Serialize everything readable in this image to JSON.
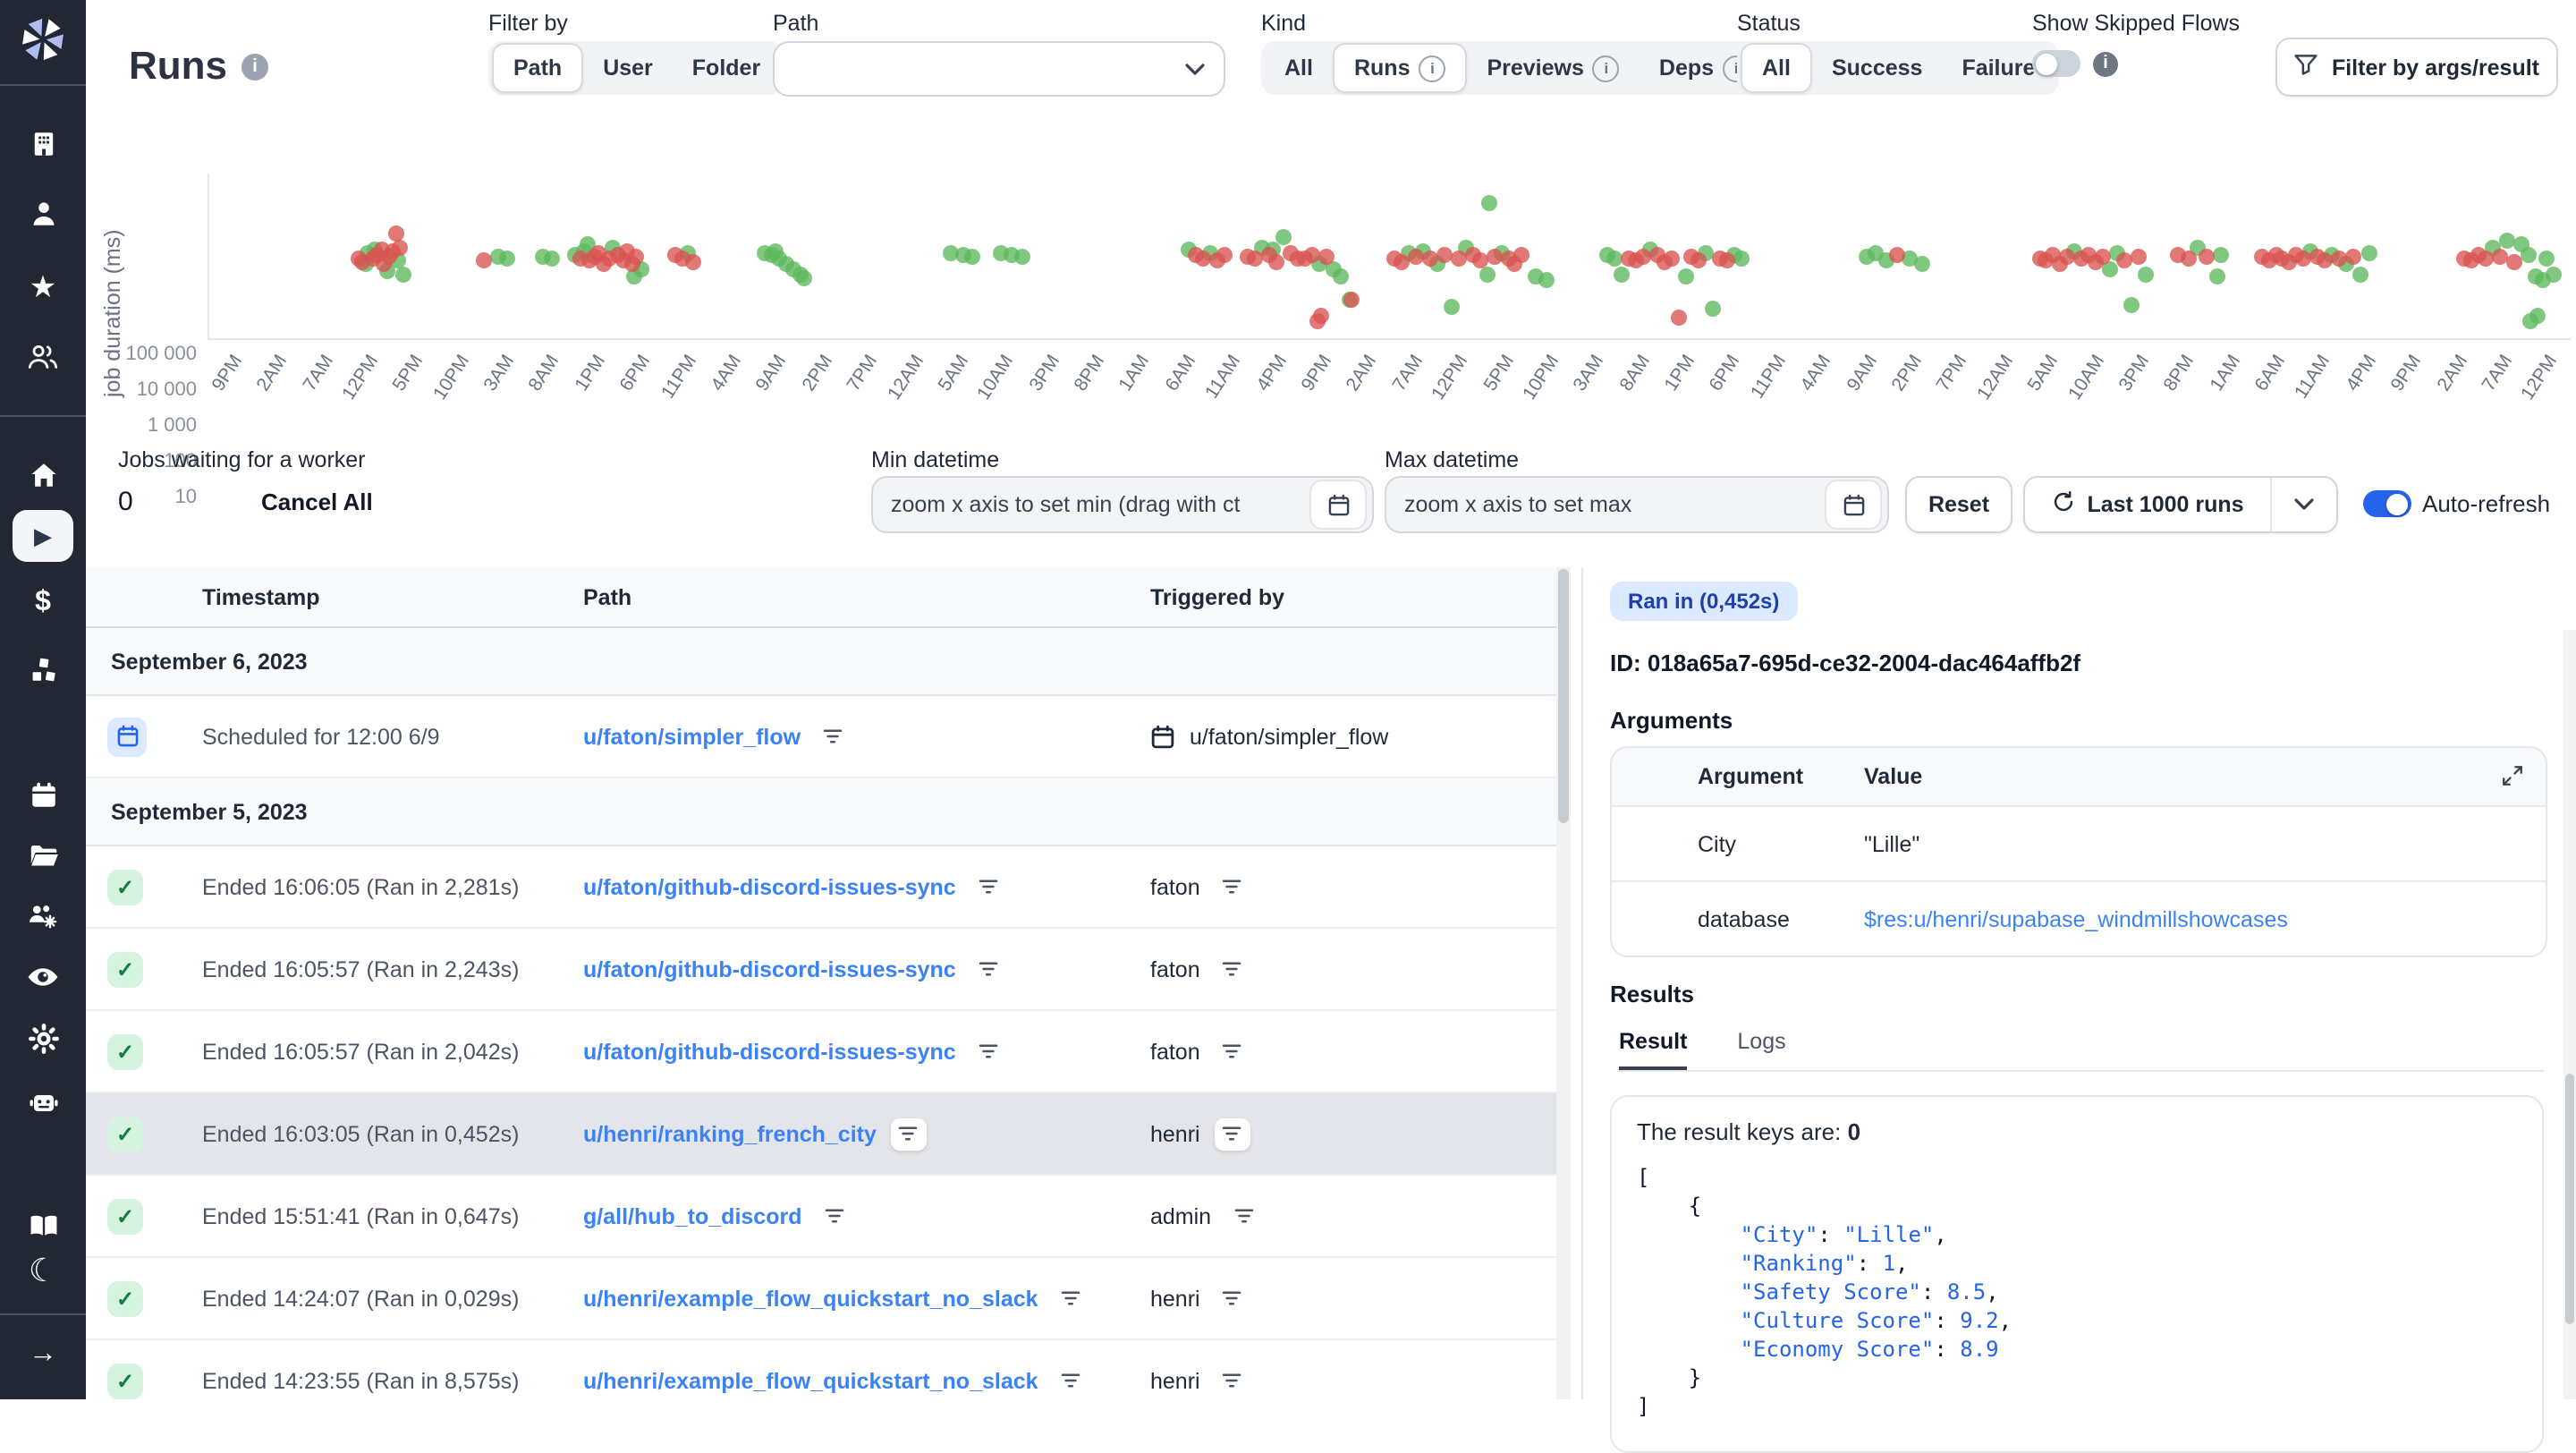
{
  "app": {
    "name": "Windmill"
  },
  "header": {
    "title": "Runs",
    "filter_by": {
      "label": "Filter by",
      "options": [
        "Path",
        "User",
        "Folder"
      ],
      "selected": "Path"
    },
    "path_filter": {
      "label": "Path",
      "value": ""
    },
    "kind": {
      "label": "Kind",
      "options": [
        "All",
        "Runs",
        "Previews",
        "Deps"
      ],
      "selected": "Runs",
      "options_with_info": [
        "Runs",
        "Previews",
        "Deps"
      ]
    },
    "status": {
      "label": "Status",
      "options": [
        "All",
        "Success",
        "Failure"
      ],
      "selected": "All"
    },
    "show_skipped": {
      "label": "Show Skipped Flows",
      "enabled": false
    },
    "filter_args_button": "Filter by args/result"
  },
  "chart_data": {
    "type": "scatter",
    "ylabel": "job duration (ms)",
    "y_scale": "log",
    "ylim": [
      10,
      100000
    ],
    "y_ticks": [
      "100 000",
      "10 000",
      "1 000",
      "100",
      "10"
    ],
    "x_ticks": [
      "9PM",
      "2AM",
      "7AM",
      "12PM",
      "5PM",
      "10PM",
      "3AM",
      "8AM",
      "1PM",
      "6PM",
      "11PM",
      "4AM",
      "9AM",
      "2PM",
      "7PM",
      "12AM",
      "5AM",
      "10AM",
      "3PM",
      "8PM",
      "1AM",
      "6AM",
      "11AM",
      "4PM",
      "9PM",
      "2AM",
      "7AM",
      "12PM",
      "5PM",
      "10PM",
      "3AM",
      "8AM",
      "1PM",
      "6PM",
      "11PM",
      "4AM",
      "9AM",
      "2PM",
      "7PM",
      "12AM",
      "5AM",
      "10AM",
      "3PM",
      "8PM",
      "1AM",
      "6AM",
      "11AM",
      "4PM",
      "9PM",
      "2AM",
      "7AM",
      "12PM"
    ],
    "legend_position": "none",
    "grid": false,
    "series": [
      {
        "name": "success",
        "color": "#5cb85c",
        "points": [
          [
            6.6,
            900
          ],
          [
            6.7,
            1900
          ],
          [
            7.0,
            2300
          ],
          [
            7.5,
            600
          ],
          [
            8.0,
            1200
          ],
          [
            8.2,
            480
          ],
          [
            12.2,
            1550
          ],
          [
            12.6,
            1350
          ],
          [
            14.1,
            1500
          ],
          [
            14.5,
            1300
          ],
          [
            15.5,
            1700
          ],
          [
            15.9,
            2200
          ],
          [
            16.0,
            3200
          ],
          [
            17.1,
            2600
          ],
          [
            18.0,
            420
          ],
          [
            18.3,
            700
          ],
          [
            20.3,
            1800
          ],
          [
            23.5,
            1900
          ],
          [
            23.8,
            1600
          ],
          [
            24.0,
            2100
          ],
          [
            24.1,
            1300
          ],
          [
            24.4,
            1000
          ],
          [
            24.7,
            700
          ],
          [
            25.0,
            480
          ],
          [
            25.2,
            380
          ],
          [
            31.4,
            1900
          ],
          [
            31.9,
            1700
          ],
          [
            32.3,
            1500
          ],
          [
            33.5,
            1900
          ],
          [
            34.0,
            1650
          ],
          [
            34.4,
            1500
          ],
          [
            41.5,
            2300
          ],
          [
            42.4,
            1900
          ],
          [
            44.6,
            2800
          ],
          [
            45.0,
            2400
          ],
          [
            45.5,
            5200
          ],
          [
            47.0,
            1000
          ],
          [
            47.6,
            650
          ],
          [
            47.9,
            430
          ],
          [
            48.3,
            100
          ],
          [
            50.8,
            1800
          ],
          [
            51.4,
            2200
          ],
          [
            52.0,
            900
          ],
          [
            52.6,
            60
          ],
          [
            53.2,
            2600
          ],
          [
            54.1,
            480
          ],
          [
            54.2,
            50000
          ],
          [
            54.7,
            1900
          ],
          [
            56.2,
            420
          ],
          [
            56.6,
            350
          ],
          [
            59.2,
            1600
          ],
          [
            59.5,
            1300
          ],
          [
            59.8,
            470
          ],
          [
            61.0,
            2500
          ],
          [
            62.5,
            420
          ],
          [
            63.4,
            1800
          ],
          [
            63.7,
            55
          ],
          [
            64.6,
            1600
          ],
          [
            64.9,
            1300
          ],
          [
            70.2,
            1500
          ],
          [
            70.6,
            1800
          ],
          [
            71.0,
            1200
          ],
          [
            72.0,
            1400
          ],
          [
            72.5,
            900
          ],
          [
            79.0,
            2200
          ],
          [
            80.5,
            700
          ],
          [
            80.8,
            1800
          ],
          [
            81.4,
            65
          ],
          [
            82.0,
            450
          ],
          [
            84.2,
            2600
          ],
          [
            85.0,
            400
          ],
          [
            85.2,
            1700
          ],
          [
            89.0,
            2000
          ],
          [
            89.9,
            1600
          ],
          [
            90.5,
            1000
          ],
          [
            91.1,
            450
          ],
          [
            91.5,
            1800
          ],
          [
            96.7,
            2600
          ],
          [
            97.3,
            4300
          ],
          [
            97.9,
            3400
          ],
          [
            98.2,
            1700
          ],
          [
            98.3,
            25
          ],
          [
            98.5,
            420
          ],
          [
            98.6,
            32
          ],
          [
            98.8,
            350
          ],
          [
            99.0,
            1300
          ],
          [
            99.3,
            500
          ]
        ]
      },
      {
        "name": "failure",
        "color": "#d9534f",
        "points": [
          [
            6.3,
            1400
          ],
          [
            6.5,
            1100
          ],
          [
            6.9,
            1300
          ],
          [
            7.1,
            1600
          ],
          [
            7.3,
            2400
          ],
          [
            7.4,
            1000
          ],
          [
            7.6,
            1500
          ],
          [
            7.8,
            2000
          ],
          [
            7.9,
            6800
          ],
          [
            8.1,
            2800
          ],
          [
            11.6,
            1250
          ],
          [
            15.7,
            1400
          ],
          [
            16.1,
            1200
          ],
          [
            16.3,
            1500
          ],
          [
            16.5,
            1800
          ],
          [
            16.7,
            1000
          ],
          [
            16.9,
            1400
          ],
          [
            17.3,
            1600
          ],
          [
            17.5,
            1200
          ],
          [
            17.7,
            2000
          ],
          [
            17.9,
            900
          ],
          [
            18.1,
            1500
          ],
          [
            19.7,
            1600
          ],
          [
            20.0,
            1400
          ],
          [
            20.5,
            1100
          ],
          [
            41.8,
            1600
          ],
          [
            42.1,
            1400
          ],
          [
            42.7,
            1200
          ],
          [
            43.0,
            1600
          ],
          [
            44.0,
            1500
          ],
          [
            44.3,
            1300
          ],
          [
            44.9,
            1600
          ],
          [
            45.2,
            1100
          ],
          [
            45.8,
            1800
          ],
          [
            46.1,
            1400
          ],
          [
            46.4,
            1300
          ],
          [
            46.7,
            1700
          ],
          [
            47.3,
            1500
          ],
          [
            46.9,
            25
          ],
          [
            47.1,
            35
          ],
          [
            48.4,
            90
          ],
          [
            50.2,
            1400
          ],
          [
            50.5,
            1100
          ],
          [
            51.1,
            1500
          ],
          [
            51.7,
            1300
          ],
          [
            52.3,
            1600
          ],
          [
            52.9,
            1400
          ],
          [
            53.5,
            1700
          ],
          [
            53.8,
            1200
          ],
          [
            54.4,
            1500
          ],
          [
            55.0,
            1300
          ],
          [
            55.3,
            1000
          ],
          [
            55.6,
            1600
          ],
          [
            60.1,
            1400
          ],
          [
            60.4,
            1200
          ],
          [
            60.7,
            1550
          ],
          [
            61.3,
            1700
          ],
          [
            61.6,
            1100
          ],
          [
            61.9,
            1350
          ],
          [
            62.2,
            30
          ],
          [
            62.8,
            1500
          ],
          [
            63.1,
            1250
          ],
          [
            64.0,
            1400
          ],
          [
            64.3,
            1150
          ],
          [
            71.5,
            1600
          ],
          [
            77.5,
            1400
          ],
          [
            77.8,
            1200
          ],
          [
            78.1,
            1700
          ],
          [
            78.4,
            1000
          ],
          [
            78.7,
            1500
          ],
          [
            79.3,
            1300
          ],
          [
            79.6,
            1600
          ],
          [
            79.9,
            1100
          ],
          [
            80.2,
            1450
          ],
          [
            81.1,
            1250
          ],
          [
            81.7,
            1550
          ],
          [
            83.4,
            1600
          ],
          [
            83.8,
            1300
          ],
          [
            84.6,
            1450
          ],
          [
            86.9,
            1500
          ],
          [
            87.2,
            1250
          ],
          [
            87.5,
            1650
          ],
          [
            87.8,
            1400
          ],
          [
            88.1,
            1100
          ],
          [
            88.4,
            1750
          ],
          [
            88.7,
            1300
          ],
          [
            89.3,
            1500
          ],
          [
            89.6,
            1200
          ],
          [
            90.2,
            1350
          ],
          [
            90.8,
            1500
          ],
          [
            95.5,
            1400
          ],
          [
            95.8,
            1200
          ],
          [
            96.1,
            1600
          ],
          [
            96.4,
            1300
          ],
          [
            97.0,
            1500
          ],
          [
            97.6,
            1100
          ]
        ]
      }
    ]
  },
  "controls": {
    "jobs_waiting_label": "Jobs waiting for a worker",
    "jobs_waiting_count": "0",
    "cancel_all": "Cancel All",
    "min_datetime": {
      "label": "Min datetime",
      "placeholder": "zoom x axis to set min (drag with ct"
    },
    "max_datetime": {
      "label": "Max datetime",
      "placeholder": "zoom x axis to set max"
    },
    "reset": "Reset",
    "last_runs": "Last 1000 runs",
    "auto_refresh": {
      "label": "Auto-refresh",
      "enabled": true
    }
  },
  "table": {
    "columns": [
      "Timestamp",
      "Path",
      "Triggered by"
    ],
    "sections": [
      {
        "date": "September 6, 2023",
        "rows": [
          {
            "icon": "calendar",
            "time": "Scheduled for 12:00 6/9",
            "path": "u/faton/simpler_flow",
            "by": "u/faton/simpler_flow",
            "by_icon": "calendar",
            "selected": false
          }
        ]
      },
      {
        "date": "September 5, 2023",
        "rows": [
          {
            "icon": "check",
            "time": "Ended 16:06:05 (Ran in 2,281s)",
            "path": "u/faton/github-discord-issues-sync",
            "by": "faton",
            "selected": false
          },
          {
            "icon": "check",
            "time": "Ended 16:05:57 (Ran in 2,243s)",
            "path": "u/faton/github-discord-issues-sync",
            "by": "faton",
            "selected": false
          },
          {
            "icon": "check",
            "time": "Ended 16:05:57 (Ran in 2,042s)",
            "path": "u/faton/github-discord-issues-sync",
            "by": "faton",
            "selected": false
          },
          {
            "icon": "check",
            "time": "Ended 16:03:05 (Ran in 0,452s)",
            "path": "u/henri/ranking_french_city",
            "by": "henri",
            "selected": true
          },
          {
            "icon": "check",
            "time": "Ended 15:51:41 (Ran in 0,647s)",
            "path": "g/all/hub_to_discord",
            "by": "admin",
            "selected": false
          },
          {
            "icon": "check",
            "time": "Ended 14:24:07 (Ran in 0,029s)",
            "path": "u/henri/example_flow_quickstart_no_slack",
            "by": "henri",
            "selected": false
          },
          {
            "icon": "check",
            "time": "Ended 14:23:55 (Ran in 8,575s)",
            "path": "u/henri/example_flow_quickstart_no_slack",
            "by": "henri",
            "selected": false
          }
        ]
      }
    ]
  },
  "detail": {
    "ran_in_badge": "Ran in (0,452s)",
    "run_id": "ID: 018a65a7-695d-ce32-2004-dac464affb2f",
    "arguments_label": "Arguments",
    "args_table": {
      "columns": [
        "Argument",
        "Value"
      ],
      "rows": [
        {
          "name": "City",
          "value": "\"Lille\"",
          "is_link": false
        },
        {
          "name": "database",
          "value": "$res:u/henri/supabase_windmillshowcases",
          "is_link": true
        }
      ]
    },
    "results_label": "Results",
    "tabs": [
      "Result",
      "Logs"
    ],
    "active_tab": "Result",
    "result_intro": "The result keys are: ",
    "result_intro_bold": "0",
    "json_lines": [
      [
        [
          "p",
          "["
        ]
      ],
      [
        [
          "p",
          "    {"
        ]
      ],
      [
        [
          "k",
          "        \"City\""
        ],
        [
          "p",
          ": "
        ],
        [
          "v",
          "\"Lille\""
        ],
        [
          "p",
          ","
        ]
      ],
      [
        [
          "k",
          "        \"Ranking\""
        ],
        [
          "p",
          ": "
        ],
        [
          "v",
          "1"
        ],
        [
          "p",
          ","
        ]
      ],
      [
        [
          "k",
          "        \"Safety Score\""
        ],
        [
          "p",
          ": "
        ],
        [
          "v",
          "8.5"
        ],
        [
          "p",
          ","
        ]
      ],
      [
        [
          "k",
          "        \"Culture Score\""
        ],
        [
          "p",
          ": "
        ],
        [
          "v",
          "9.2"
        ],
        [
          "p",
          ","
        ]
      ],
      [
        [
          "k",
          "        \"Economy Score\""
        ],
        [
          "p",
          ": "
        ],
        [
          "v",
          "8.9"
        ]
      ],
      [
        [
          "p",
          "    }"
        ]
      ],
      [
        [
          "p",
          "]"
        ]
      ]
    ]
  },
  "colors": {
    "accent_blue": "#3b82f6",
    "toggle_on": "#2563eb",
    "success_green": "#5cb85c",
    "failure_red": "#d9534f",
    "sidebar_bg": "#212733",
    "selected_row": "#e3e5ea"
  },
  "sidebar_icons": [
    "windmill-logo",
    "building",
    "user",
    "star",
    "users",
    "home",
    "play",
    "dollar",
    "cubes",
    "calendar",
    "folder",
    "worker-group",
    "eye",
    "gear",
    "robot",
    "book",
    "moon",
    "arrow-right"
  ]
}
